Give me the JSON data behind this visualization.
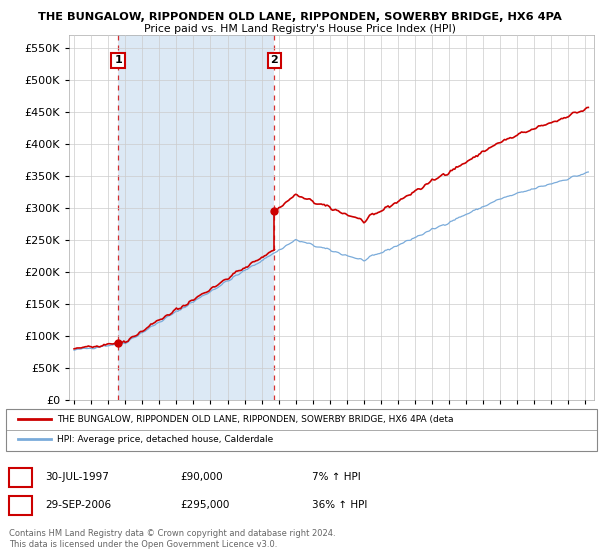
{
  "title": "THE BUNGALOW, RIPPONDEN OLD LANE, RIPPONDEN, SOWERBY BRIDGE, HX6 4PA",
  "subtitle": "Price paid vs. HM Land Registry's House Price Index (HPI)",
  "legend_line1": "THE BUNGALOW, RIPPONDEN OLD LANE, RIPPONDEN, SOWERBY BRIDGE, HX6 4PA (deta",
  "legend_line2": "HPI: Average price, detached house, Calderdale",
  "annotation1_date": "30-JUL-1997",
  "annotation1_price": 90000,
  "annotation1_hpi": "7% ↑ HPI",
  "annotation1_year": 1997.58,
  "annotation2_date": "29-SEP-2006",
  "annotation2_price": 295000,
  "annotation2_hpi": "36% ↑ HPI",
  "annotation2_year": 2006.75,
  "footer1": "Contains HM Land Registry data © Crown copyright and database right 2024.",
  "footer2": "This data is licensed under the Open Government Licence v3.0.",
  "red_color": "#cc0000",
  "blue_color": "#7aabda",
  "shade_color": "#dce9f5",
  "grid_color": "#cccccc",
  "background_color": "#ffffff",
  "ylim": [
    0,
    570000
  ],
  "yticks": [
    0,
    50000,
    100000,
    150000,
    200000,
    250000,
    300000,
    350000,
    400000,
    450000,
    500000,
    550000
  ],
  "xlim_min": 1994.7,
  "xlim_max": 2025.5
}
